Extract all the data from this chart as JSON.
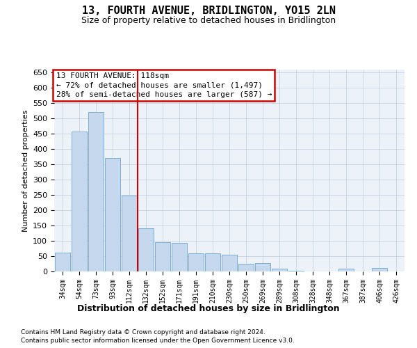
{
  "title": "13, FOURTH AVENUE, BRIDLINGTON, YO15 2LN",
  "subtitle": "Size of property relative to detached houses in Bridlington",
  "xlabel": "Distribution of detached houses by size in Bridlington",
  "ylabel": "Number of detached properties",
  "footnote1": "Contains HM Land Registry data © Crown copyright and database right 2024.",
  "footnote2": "Contains public sector information licensed under the Open Government Licence v3.0.",
  "categories": [
    "34sqm",
    "54sqm",
    "73sqm",
    "93sqm",
    "112sqm",
    "132sqm",
    "152sqm",
    "171sqm",
    "191sqm",
    "210sqm",
    "230sqm",
    "250sqm",
    "269sqm",
    "289sqm",
    "308sqm",
    "328sqm",
    "348sqm",
    "367sqm",
    "387sqm",
    "406sqm",
    "426sqm"
  ],
  "values": [
    62,
    457,
    522,
    370,
    248,
    140,
    95,
    93,
    60,
    59,
    55,
    25,
    27,
    8,
    2,
    1,
    1,
    10,
    1,
    12,
    0
  ],
  "bar_color": "#c5d8ee",
  "bar_edge_color": "#7aafd4",
  "vline_x": 4.5,
  "vline_color": "#cc0000",
  "annotation_line1": "13 FOURTH AVENUE: 118sqm",
  "annotation_line2": "← 72% of detached houses are smaller (1,497)",
  "annotation_line3": "28% of semi-detached houses are larger (587) →",
  "ylim": [
    0,
    660
  ],
  "yticks": [
    0,
    50,
    100,
    150,
    200,
    250,
    300,
    350,
    400,
    450,
    500,
    550,
    600,
    650
  ],
  "bg_color": "#edf2f9",
  "title_fontsize": 11,
  "subtitle_fontsize": 9,
  "ylabel_fontsize": 8,
  "xlabel_fontsize": 9,
  "tick_fontsize": 8,
  "xtick_fontsize": 7,
  "annot_fontsize": 8,
  "footnote_fontsize": 6.5
}
